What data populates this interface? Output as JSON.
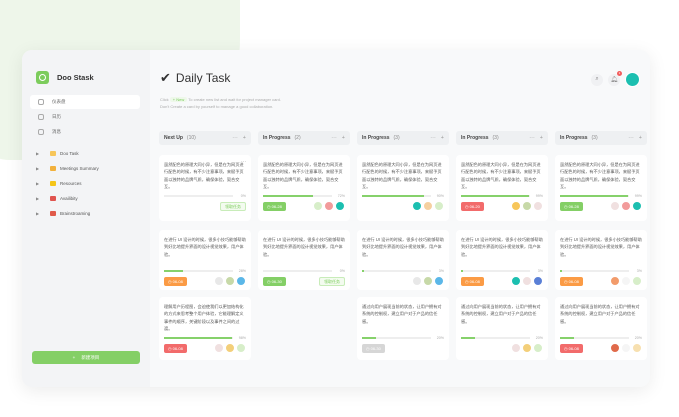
{
  "app": {
    "name": "Doo Stask",
    "logo_icon": "doo-logo"
  },
  "sidebar": {
    "nav": [
      {
        "label": "仪表盘",
        "icon": "dashboard-icon",
        "active": true
      },
      {
        "label": "日历",
        "icon": "calendar-icon"
      },
      {
        "label": "消息",
        "icon": "message-icon"
      }
    ],
    "tree": [
      {
        "label": "Doo Task",
        "icon": "ticket-emoji",
        "color": "#f7c65a"
      },
      {
        "label": "Meetings Summary",
        "icon": "handshake-emoji",
        "color": "#f2b13c"
      },
      {
        "label": "Resources",
        "icon": "note-emoji",
        "color": "#f5c518"
      },
      {
        "label": "Availibity",
        "icon": "calendar-emoji",
        "color": "#e0544f"
      },
      {
        "label": "Brainstroaming",
        "icon": "alarm-clock-emoji",
        "color": "#e05a4a"
      }
    ],
    "new_button": "新建项目"
  },
  "header": {
    "title": "Daily Task",
    "hint_click": "Click",
    "hint_new": "+ New",
    "hint_rest": "To create new list and wait for project manager card.",
    "hint_line2": "Don't Create a card by yourself to manage a good collaboration.",
    "notification_count": "1"
  },
  "colors": {
    "accent": "#84cf66",
    "green": "#84cf66",
    "orange": "#fb9b45",
    "red": "#f26b6b",
    "gray": "#d6d6d6"
  },
  "columns": [
    {
      "title": "Next Up",
      "count": "(10)",
      "cards": [
        {
          "text": "虽然配色的原理大同小异，但是在为网页进行配色的时候，有不少注意事项，来赋予页面以独特的品牌气质，确保体验，契合交互。",
          "progress": 0,
          "pct": "0%",
          "tag": "领取任务",
          "more": "···"
        },
        {
          "text": "在进行 UI 设计的时候，很多小技巧能够帮助到好比地提升界面的设计视觉效果，用户体验。",
          "progress": 28,
          "pct": "28%",
          "date": "06-08",
          "date_color": "orange",
          "avatars": [
            "#e8e8e8",
            "#c7d9a8",
            "#5bb7e8"
          ]
        },
        {
          "text": "理解用户历程图，会迫使我们以更加结构化的方式来思考整个用户体验，它能理解定义事件的顺序，关键阶段以及事件之间的过渡。",
          "progress": 98,
          "pct": "98%",
          "date": "06-08",
          "date_color": "red",
          "avatars": [
            "#f0e0e0",
            "#f3cf7a",
            "#d7eec9"
          ]
        }
      ]
    },
    {
      "title": "In Progress",
      "count": "(2)",
      "cards": [
        {
          "text": "虽然配色的原理大同小异，但是在为网页进行配色的时候，有不少注意事项，来赋予页面以独特的品牌气质，确保体验，契合交互。",
          "progress": 72,
          "pct": "72%",
          "date": "06-28",
          "date_color": "green",
          "avatars": [
            "#d7eec9",
            "#f29b9b",
            "#1cbfb0"
          ]
        },
        {
          "text": "在进行 UI 设计的时候，很多小技巧能够帮助到好比地提升界面的设计视觉效果，用户体验。",
          "progress": 0,
          "pct": "0%",
          "date": "06-30",
          "date_color": "green",
          "tag": "领取任务"
        }
      ]
    },
    {
      "title": "In Progress",
      "count": "(3)",
      "cards": [
        {
          "text": "虽然配色的原理大同小异，但是在为网页进行配色的时候，有不少注意事项，来赋予页面以独特的品牌气质，确保体验，契合交互。",
          "progress": 90,
          "pct": "90%",
          "avatars": [
            "#1cbfb0",
            "#f5d0a0",
            "#d7eec9"
          ]
        },
        {
          "text": "在进行 UI 设计的时候，很多小技巧能够帮助到好比地提升界面的设计视觉效果，用户体验。",
          "progress": 3,
          "pct": "3%",
          "avatars": [
            "#e8e8e8",
            "#c7d9a8",
            "#5bb7e8"
          ]
        },
        {
          "text": "通过向用户展现当前的状态，让用户拥有对系统的控制权，建立用户对于产品的信任感。",
          "progress": 20,
          "pct": "20%",
          "date": "06-30",
          "date_color": "gray"
        }
      ]
    },
    {
      "title": "In Progress",
      "count": "(3)",
      "cards": [
        {
          "text": "虽然配色的原理大同小异，但是在为网页进行配色的时候，有不少注意事项，来赋予页面以独特的品牌气质，确保体验，契合交互。",
          "progress": 99,
          "pct": "99%",
          "date": "06-20",
          "date_color": "red",
          "avatars": [
            "#f7c65a",
            "#c7d9a8",
            "#f0e0e0"
          ]
        },
        {
          "text": "在进行 UI 设计的时候，很多小技巧能够帮助到好比地提升界面的设计视觉效果，用户体验。",
          "progress": 3,
          "pct": "3%",
          "date": "06-08",
          "date_color": "orange",
          "avatars": [
            "#1cbfb0",
            "#f0e0e0",
            "#5a7fd6"
          ]
        },
        {
          "text": "通过向用户展现当前的状态，让用户拥有对系统的控制权，建立用户对于产品的信任感。",
          "progress": 20,
          "pct": "20%",
          "avatars": [
            "#f0e0e0",
            "#f3cf7a",
            "#d7eec9"
          ]
        }
      ]
    },
    {
      "title": "In Progress",
      "count": "(3)",
      "cards": [
        {
          "text": "虽然配色的原理大同小异，但是在为网页进行配色的时候，有不少注意事项，来赋予页面以独特的品牌气质，确保体验，契合交互。",
          "progress": 99,
          "pct": "99%",
          "date": "06-28",
          "date_color": "green",
          "avatars": [
            "#f0e0e0",
            "#f29b9b",
            "#1cbfb0"
          ]
        },
        {
          "text": "在进行 UI 设计的时候，很多小技巧能够帮助到好比地提升界面的设计视觉效果，用户体验。",
          "progress": 3,
          "pct": "3%",
          "date": "06-08",
          "date_color": "orange",
          "avatars": [
            "#f29b6b",
            "#f5f5f5",
            "#d7eec9"
          ]
        },
        {
          "text": "通过向用户展现当前的状态，让用户拥有对系统的控制权，建立用户对于产品的信任感。",
          "progress": 20,
          "pct": "20%",
          "date": "06-08",
          "date_color": "red",
          "avatars": [
            "#e06a4a",
            "#f5f5f5",
            "#f7e0b0"
          ]
        }
      ]
    }
  ]
}
